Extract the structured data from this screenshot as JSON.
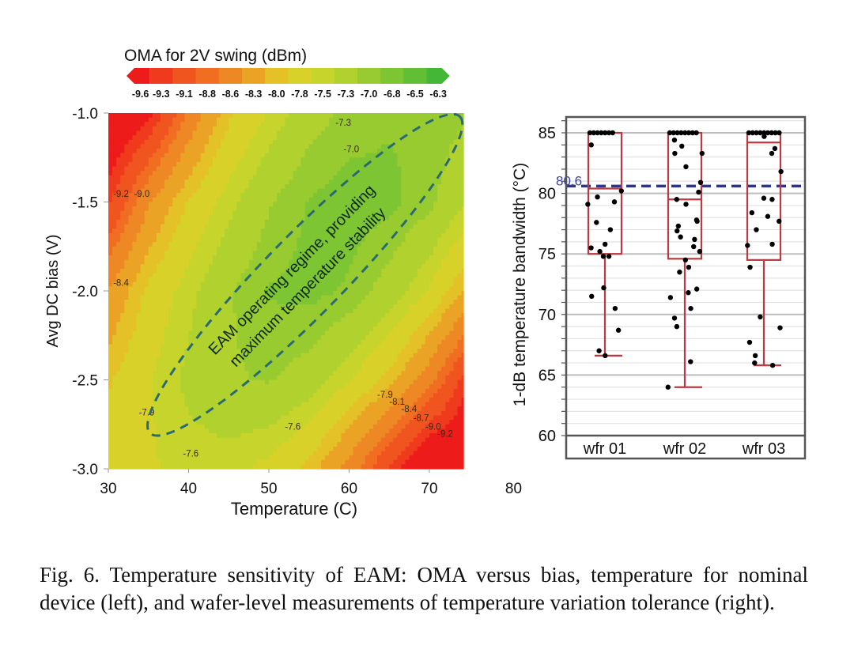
{
  "chart_data": [
    {
      "type": "heatmap",
      "title": "OMA for 2V swing (dBm)",
      "xlabel": "Temperature (C)",
      "ylabel": "Avg DC bias (V)",
      "xlim": [
        30,
        74.3
      ],
      "ylim": [
        -3.0,
        -1.0
      ],
      "x_ticks": [
        "30",
        "40",
        "50",
        "60",
        "70",
        "80"
      ],
      "x_tick_values": [
        30,
        40,
        50,
        60,
        70,
        80
      ],
      "y_ticks": [
        "-1.0",
        "-1.5",
        "-2.0",
        "-2.5",
        "-3.0"
      ],
      "y_tick_values": [
        -1.0,
        -1.5,
        -2.0,
        -2.5,
        -3.0
      ],
      "colorbar": {
        "labels": [
          "-9.6",
          "-9.3",
          "-9.1",
          "-8.8",
          "-8.6",
          "-8.3",
          "-8.0",
          "-7.8",
          "-7.5",
          "-7.3",
          "-7.0",
          "-6.8",
          "-6.5",
          "-6.3"
        ],
        "values": [
          -9.6,
          -9.3,
          -9.1,
          -8.8,
          -8.6,
          -8.3,
          -8.0,
          -7.8,
          -7.5,
          -7.3,
          -7.0,
          -6.8,
          -6.5,
          -6.3
        ],
        "colors": [
          "#ee1b1b",
          "#ef3a1d",
          "#f0541f",
          "#f06d22",
          "#ee8824",
          "#eba326",
          "#e5c128",
          "#d8d12a",
          "#c6d42c",
          "#b0d12e",
          "#98cb30",
          "#7ec533",
          "#62be35",
          "#45b737"
        ]
      },
      "grid_temperatures": [
        30,
        35,
        40,
        45,
        50,
        55,
        60,
        65,
        70,
        75
      ],
      "grid_biases": [
        -1.0,
        -1.5,
        -2.0,
        -2.5,
        -3.0
      ],
      "z": [
        [
          -9.9,
          -9.51,
          -8.67,
          -7.97,
          -7.6,
          -7.25,
          -7.05,
          -6.95,
          -6.95,
          -7.1
        ],
        [
          -9.28,
          -8.45,
          -7.9,
          -7.5,
          -7.15,
          -6.9,
          -6.8,
          -6.85,
          -7.05,
          -7.45
        ],
        [
          -8.4,
          -7.85,
          -7.5,
          -7.15,
          -6.9,
          -6.85,
          -6.95,
          -7.25,
          -7.65,
          -8.2
        ],
        [
          -7.95,
          -7.65,
          -7.35,
          -7.15,
          -7.1,
          -7.25,
          -7.6,
          -8.0,
          -8.6,
          -9.41
        ],
        [
          -7.8,
          -7.65,
          -7.55,
          -7.55,
          -7.7,
          -8.0,
          -8.55,
          -9.24,
          -9.9,
          -9.9
        ]
      ],
      "contour_labels": [
        {
          "text": "-7.3",
          "t": 58.3,
          "v": -1.07
        },
        {
          "text": "-7.0",
          "t": 59.3,
          "v": -1.22
        },
        {
          "text": "-9.2",
          "t": 30.6,
          "v": -1.47
        },
        {
          "text": "-9.0",
          "t": 33.2,
          "v": -1.47
        },
        {
          "text": "-8.4",
          "t": 30.6,
          "v": -1.97
        },
        {
          "text": "-7.9",
          "t": 33.8,
          "v": -2.7
        },
        {
          "text": "-7.6",
          "t": 39.3,
          "v": -2.93
        },
        {
          "text": "-7.6",
          "t": 52.0,
          "v": -2.78
        },
        {
          "text": "-7.9",
          "t": 63.5,
          "v": -2.6
        },
        {
          "text": "-8.1",
          "t": 65.0,
          "v": -2.64
        },
        {
          "text": "-8.4",
          "t": 66.5,
          "v": -2.68
        },
        {
          "text": "-8.7",
          "t": 68.0,
          "v": -2.73
        },
        {
          "text": "-9.0",
          "t": 69.5,
          "v": -2.78
        },
        {
          "text": "-9.2",
          "t": 71.0,
          "v": -2.82
        }
      ],
      "annotation": {
        "line1": "EAM operating regime, providing",
        "line2": "maximum temperature stability",
        "ellipse_ends": [
          {
            "t": 35.2,
            "v": -2.8
          },
          {
            "t": 73.8,
            "v": -1.02
          }
        ],
        "ellipse_color": "#2a6a74"
      }
    },
    {
      "type": "box",
      "ylabel": "1-dB temperature bandwidth (°C)",
      "ylim": [
        60,
        86.3
      ],
      "y_ticks": [
        "85",
        "80",
        "75",
        "70",
        "65",
        "60"
      ],
      "y_tick_values": [
        85,
        80,
        75,
        70,
        65,
        60
      ],
      "categories": [
        "wfr 01",
        "wfr 02",
        "wfr 03"
      ],
      "reference_line": {
        "value": 80.6,
        "label": "80.6",
        "color": "#2e3582"
      },
      "box_color": "#b93a40",
      "series": [
        {
          "name": "wfr 01",
          "q1": 75.0,
          "median": 80.4,
          "q3": 85.0,
          "whisker_low": 66.6,
          "whisker_high": 85.0,
          "points": [
            85,
            85,
            85,
            85,
            85,
            85,
            85,
            84.0,
            80.2,
            79.7,
            79.3,
            79.1,
            77.6,
            77.0,
            75.8,
            75.5,
            75.2,
            74.8,
            74.8,
            72.2,
            71.5,
            70.5,
            68.7,
            67.0,
            66.6
          ]
        },
        {
          "name": "wfr 02",
          "q1": 74.6,
          "median": 79.5,
          "q3": 85.0,
          "whisker_low": 64.0,
          "whisker_high": 85.0,
          "points": [
            85,
            85,
            85,
            85,
            85,
            85,
            85,
            85,
            84.4,
            83.9,
            83.3,
            83.3,
            82.2,
            80.9,
            80.1,
            79.5,
            79.1,
            77.8,
            77.3,
            77.7,
            76.9,
            76.2,
            76.4,
            75.6,
            75.2,
            74.5,
            73.9,
            73.5,
            72.1,
            71.8,
            71.4,
            70.5,
            69.7,
            69.0,
            66.1,
            64.0
          ]
        },
        {
          "name": "wfr 03",
          "q1": 74.5,
          "median": 84.2,
          "q3": 85.0,
          "whisker_low": 65.8,
          "whisker_high": 85.0,
          "points": [
            85,
            85,
            85,
            85,
            85,
            85,
            85,
            85,
            85,
            84.7,
            83.7,
            83.3,
            81.8,
            79.6,
            79.5,
            78.4,
            78.1,
            77.7,
            77.0,
            75.8,
            75.7,
            73.9,
            69.8,
            68.9,
            67.7,
            66.6,
            66.0,
            65.8
          ]
        }
      ]
    }
  ],
  "caption": "Fig. 6.  Temperature sensitivity of EAM: OMA versus bias, temperature for nominal device (left), and wafer-level measurements of temperature variation tolerance (right)."
}
